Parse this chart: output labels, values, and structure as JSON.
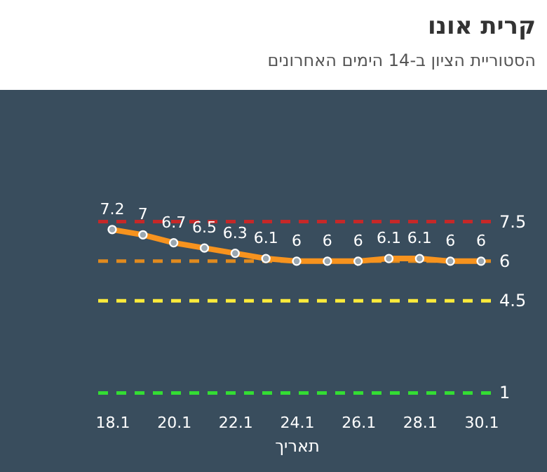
{
  "chart_data": {
    "type": "line",
    "title": "קרית אונו",
    "subtitle": "הסטוריית הציון ב-14 הימים האחרונים",
    "xlabel": "תאריך",
    "categories": [
      "18.1",
      null,
      "20.1",
      null,
      "22.1",
      null,
      "24.1",
      null,
      "26.1",
      null,
      "28.1",
      null,
      "30.1"
    ],
    "series": [
      {
        "color": "#f7931e",
        "values": [
          7.2,
          7,
          6.7,
          6.5,
          6.3,
          6.1,
          6,
          6,
          6,
          6.1,
          6.1,
          6,
          6
        ]
      }
    ],
    "ylim": [
      -2,
      12.5
    ],
    "data_labels": true,
    "marker": "circle",
    "line_style": "solid",
    "grid": false,
    "ref_lines": [
      {
        "axis": "y",
        "value": 7.5,
        "label": "7.5",
        "color": "#c62828",
        "line_style": "dashed"
      },
      {
        "axis": "y",
        "value": 6,
        "label": "6",
        "color": "#e08a1e",
        "line_style": "dashed"
      },
      {
        "axis": "y",
        "value": 4.5,
        "label": "4.5",
        "color": "#ffeb3b",
        "line_style": "dashed"
      },
      {
        "axis": "y",
        "value": 1,
        "label": "1",
        "color": "#33dd33",
        "line_style": "dashed"
      }
    ]
  }
}
